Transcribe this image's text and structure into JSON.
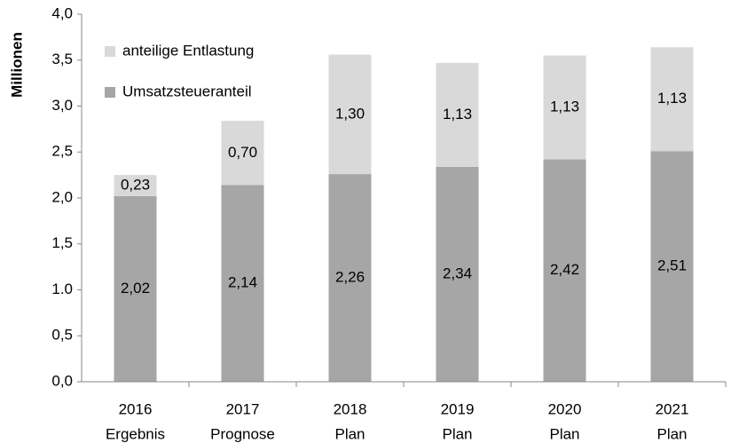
{
  "chart_data": {
    "type": "stacked_bar",
    "y_label": "Millionen",
    "categories": [
      [
        "2016",
        "Ergebnis"
      ],
      [
        "2017",
        "Prognose"
      ],
      [
        "2018",
        "Plan"
      ],
      [
        "2019",
        "Plan"
      ],
      [
        "2020",
        "Plan"
      ],
      [
        "2021",
        "Plan"
      ]
    ],
    "series": [
      {
        "name": "Umsatzsteueranteil",
        "color": "#a6a6a6",
        "values": [
          2.02,
          2.14,
          2.26,
          2.34,
          2.42,
          2.51
        ],
        "value_labels": [
          "2,02",
          "2,14",
          "2,26",
          "2,34",
          "2,42",
          "2,51"
        ]
      },
      {
        "name": "anteilige Entlastung",
        "color": "#d9d9d9",
        "values": [
          0.23,
          0.7,
          1.3,
          1.13,
          1.13,
          1.13
        ],
        "value_labels": [
          "0,23",
          "0,70",
          "1,30",
          "1,13",
          "1,13",
          "1,13"
        ]
      }
    ],
    "ylim": [
      0,
      4
    ],
    "yticks": [
      {
        "value": 0,
        "label": "0,0"
      },
      {
        "value": 0.5,
        "label": "0,5"
      },
      {
        "value": 1,
        "label": "1.0"
      },
      {
        "value": 1.5,
        "label": "1,5"
      },
      {
        "value": 2,
        "label": "2,0"
      },
      {
        "value": 2.5,
        "label": "2,5"
      },
      {
        "value": 3,
        "label": "3,0"
      },
      {
        "value": 3.5,
        "label": "3,5"
      },
      {
        "value": 4,
        "label": "4,0"
      }
    ],
    "legend": "upper left"
  }
}
